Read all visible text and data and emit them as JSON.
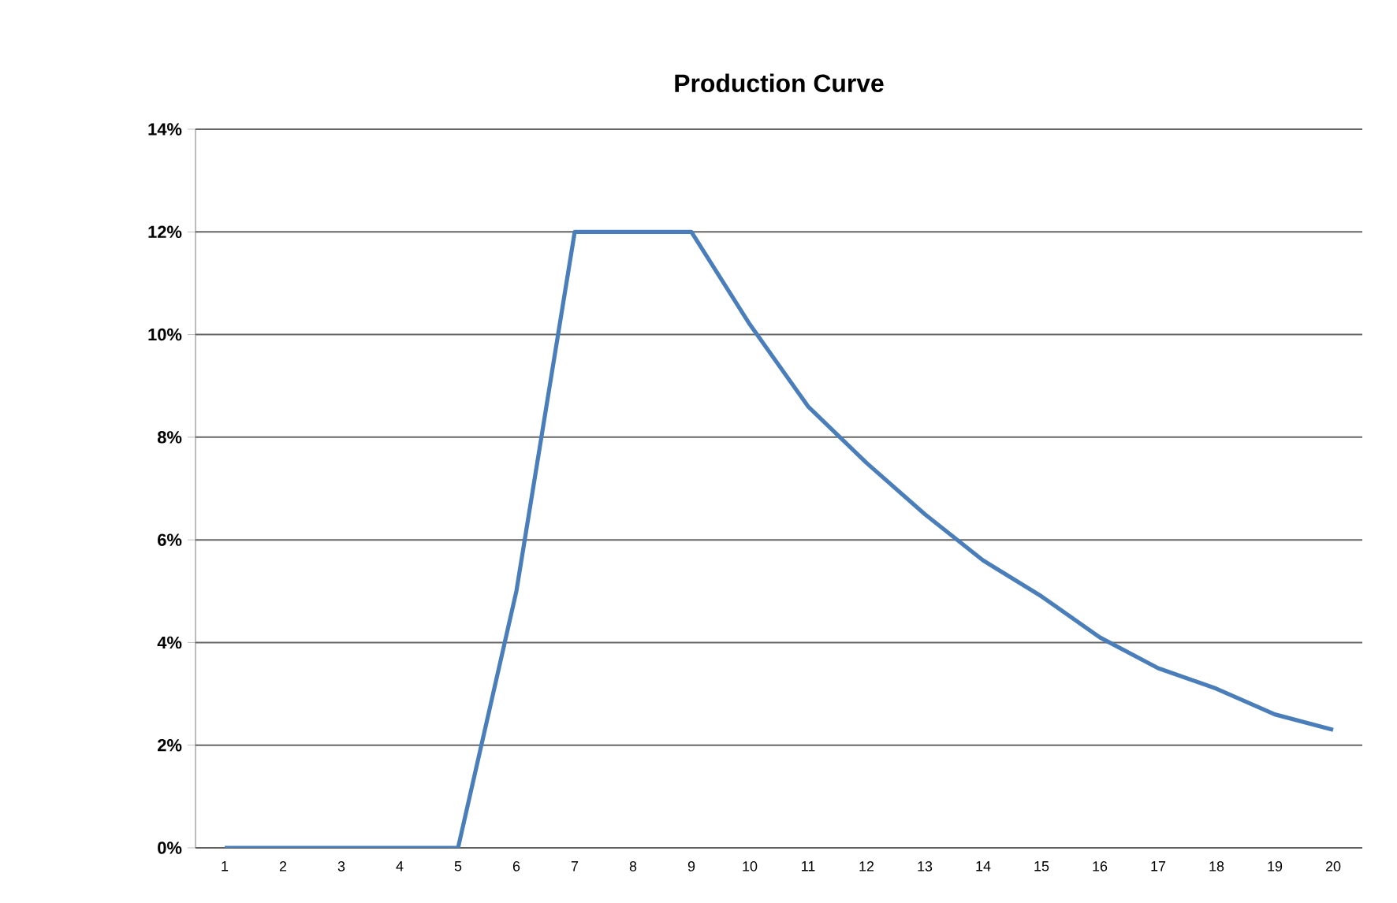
{
  "chart_data": {
    "type": "line",
    "title": "Production Curve",
    "categories": [
      "1",
      "2",
      "3",
      "4",
      "5",
      "6",
      "7",
      "8",
      "9",
      "10",
      "11",
      "12",
      "13",
      "14",
      "15",
      "16",
      "17",
      "18",
      "19",
      "20"
    ],
    "values": [
      0,
      0,
      0,
      0,
      0,
      5.0,
      12,
      12,
      12,
      10.2,
      8.6,
      7.5,
      6.5,
      5.6,
      4.9,
      4.1,
      3.5,
      3.1,
      2.6,
      2.3
    ],
    "color": "#4a7ebb",
    "ylim": [
      0,
      14
    ],
    "yticks": [
      {
        "value": 0,
        "label": "0%"
      },
      {
        "value": 2,
        "label": "2%"
      },
      {
        "value": 4,
        "label": "4%"
      },
      {
        "value": 6,
        "label": "6%"
      },
      {
        "value": 8,
        "label": "8%"
      },
      {
        "value": 10,
        "label": "10%"
      },
      {
        "value": 12,
        "label": "12%"
      },
      {
        "value": 14,
        "label": "14%"
      }
    ],
    "grid": "y",
    "marker": "none",
    "line_style": "solid"
  }
}
